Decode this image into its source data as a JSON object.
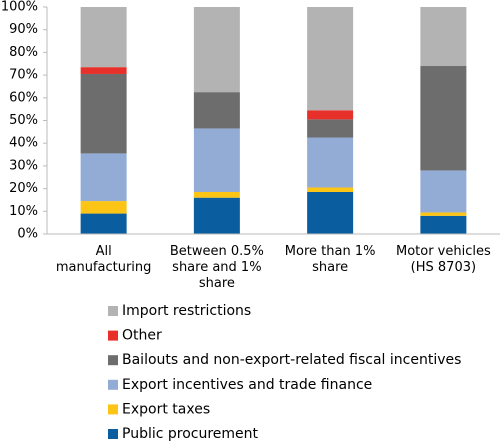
{
  "chart_data": {
    "type": "stacked-bar",
    "categories": [
      "All manufacturing",
      "Between 0.5% share and 1% share",
      "More than 1% share",
      "Motor vehicles (HS 8703)"
    ],
    "series": [
      {
        "name": "Public procurement",
        "color": "#0a5d9e",
        "values": [
          9,
          16,
          18.5,
          8
        ]
      },
      {
        "name": "Export taxes",
        "color": "#fcc414",
        "values": [
          5.5,
          2.5,
          2,
          1.5
        ]
      },
      {
        "name": "Export incentives and trade finance",
        "color": "#93acd6",
        "values": [
          21,
          28,
          22,
          18.5
        ]
      },
      {
        "name": "Bailouts and non-export-related fiscal incentives",
        "color": "#6d6d6d",
        "values": [
          35,
          16,
          8,
          46
        ]
      },
      {
        "name": "Other",
        "color": "#e8302a",
        "values": [
          3,
          0,
          4,
          0
        ]
      },
      {
        "name": "Import restrictions",
        "color": "#b3b3b3",
        "values": [
          26.5,
          37.5,
          45.5,
          26
        ]
      }
    ],
    "ylim": [
      0,
      100
    ],
    "yticks": [
      {
        "value": 0,
        "label": "0%"
      },
      {
        "value": 10,
        "label": "10%"
      },
      {
        "value": 20,
        "label": "20%"
      },
      {
        "value": 30,
        "label": "30%"
      },
      {
        "value": 40,
        "label": "40%"
      },
      {
        "value": 50,
        "label": "50%"
      },
      {
        "value": 60,
        "label": "60%"
      },
      {
        "value": 70,
        "label": "70%"
      },
      {
        "value": 80,
        "label": "80%"
      },
      {
        "value": 90,
        "label": "90%"
      },
      {
        "value": 100,
        "label": "100%"
      }
    ],
    "legend_order": "reversed"
  }
}
